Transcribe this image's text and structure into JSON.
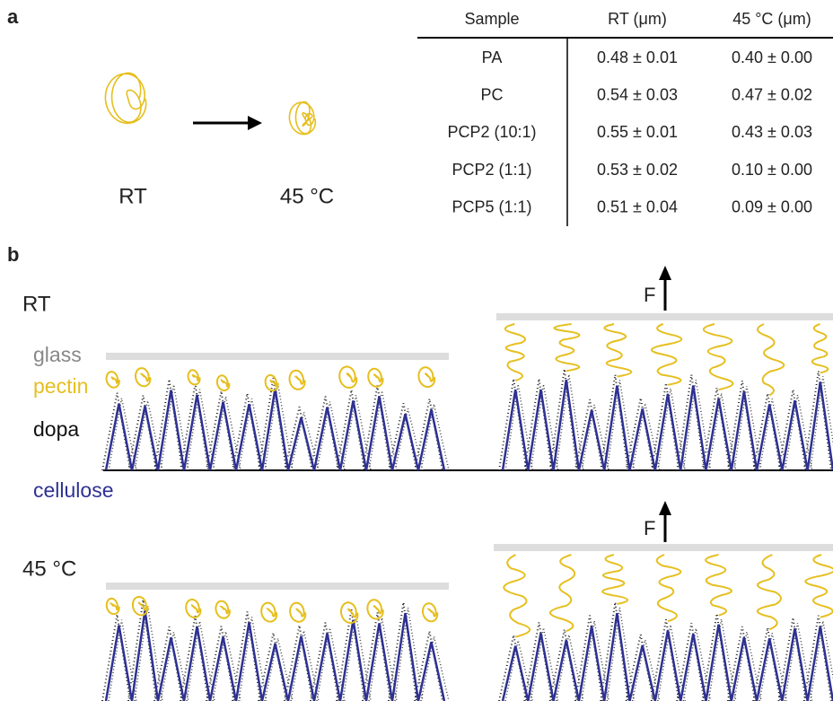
{
  "panel_a": {
    "label": "a",
    "coil_labels": [
      "RT",
      "45 °C"
    ],
    "table": {
      "header": [
        "Sample",
        "RT (μm)",
        "45 °C (μm)"
      ],
      "rows": [
        [
          "PA",
          "0.48 ± 0.01",
          "0.40 ± 0.00"
        ],
        [
          "PC",
          "0.54 ± 0.03",
          "0.47 ± 0.02"
        ],
        [
          "PCP2 (10:1)",
          "0.55 ± 0.01",
          "0.43 ± 0.03"
        ],
        [
          "PCP2 (1:1)",
          "0.53 ± 0.02",
          "0.10 ± 0.00"
        ],
        [
          "PCP5 (1:1)",
          "0.51 ± 0.04",
          "0.09 ± 0.00"
        ]
      ]
    }
  },
  "panel_b": {
    "label": "b",
    "rows": [
      "RT",
      "45 °C"
    ],
    "legend": {
      "glass": "glass",
      "pectin": "pectin",
      "dopa": "dopa",
      "cellulose": "cellulose"
    },
    "force": [
      "F",
      "F"
    ]
  }
}
